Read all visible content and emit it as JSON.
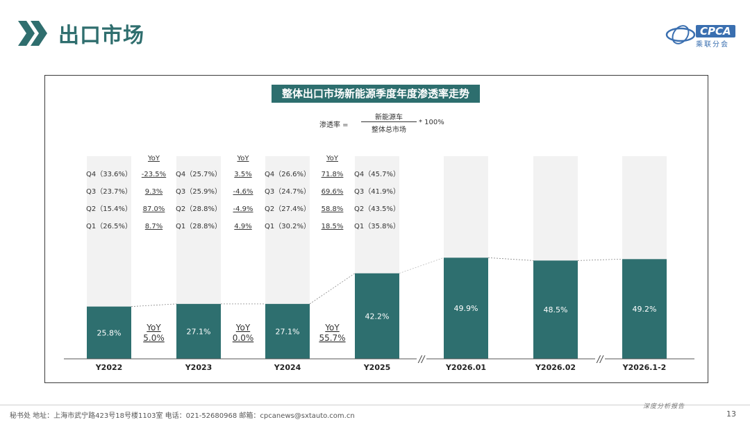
{
  "header": {
    "title": "出口市场",
    "logo_text": "CPCA",
    "logo_sub": "乘联分会"
  },
  "chart_title": "整体出口市场新能源季度年度渗透率走势",
  "formula": {
    "lhs": "渗透率 =",
    "numerator": "新能源车",
    "denominator": "整体总市场",
    "rhs": "* 100%"
  },
  "chart_data": {
    "type": "bar",
    "categories": [
      "Y2022",
      "Y2023",
      "Y2024",
      "Y2025",
      "Y2026.01",
      "Y2026.02",
      "Y2026.1-2"
    ],
    "values": [
      25.8,
      27.1,
      27.1,
      42.2,
      49.9,
      48.5,
      49.2
    ],
    "value_labels": [
      "25.8%",
      "27.1%",
      "27.1%",
      "42.2%",
      "49.9%",
      "48.5%",
      "49.2%"
    ],
    "ylim": [
      0,
      100
    ],
    "colors": {
      "bar": "#2e6f6f",
      "background_bar": "#f2f2f2"
    },
    "quarters": [
      [
        "Q4（33.6%）",
        "Q3（23.7%）",
        "Q2（15.4%）",
        "Q1（26.5%）"
      ],
      [
        "Q4（25.7%）",
        "Q3（25.9%）",
        "Q2（28.8%）",
        "Q1（28.8%）"
      ],
      [
        "Q4（26.6%）",
        "Q3（24.7%）",
        "Q2（27.4%）",
        "Q1（30.2%）"
      ],
      [
        "Q4（45.7%）",
        "Q3（41.9%）",
        "Q2（43.5%）",
        "Q1（35.8%）"
      ]
    ],
    "quarter_yoy_header": "YoY",
    "quarter_yoy": [
      [
        "-23.5%",
        "9.3%",
        "87.0%",
        "8.7%"
      ],
      [
        "3.5%",
        "-4.6%",
        "-4.9%",
        "4.9%"
      ],
      [
        "71.8%",
        "69.6%",
        "58.8%",
        "18.5%"
      ]
    ],
    "annual_yoy": [
      {
        "label": "YoY",
        "value": "5.0%"
      },
      {
        "label": "YoY",
        "value": "0.0%"
      },
      {
        "label": "YoY",
        "value": "55.7%"
      }
    ],
    "axis_breaks": [
      "//",
      "//"
    ]
  },
  "footer": {
    "info": "秘书处   地址：上海市武宁路423号18号楼1103室   电话：021-52680968   邮箱：cpcanews@sxtauto.com.cn",
    "tag": "深度分析报告",
    "page": "13"
  }
}
